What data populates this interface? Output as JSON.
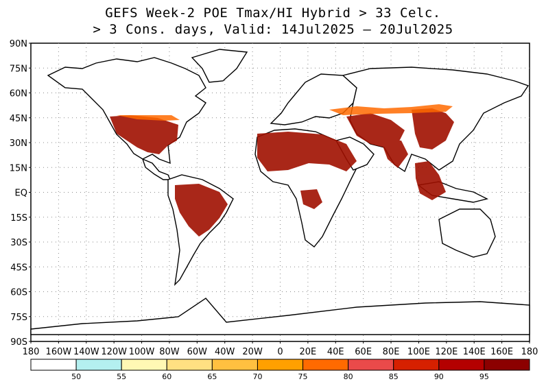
{
  "title": {
    "line1": "GEFS Week-2 POE Tmax/HI Hybrid > 33 Celc.",
    "line2": "> 3 Cons. days, Valid: 14Jul2025 – 20Jul2025"
  },
  "axes": {
    "lat_labels": [
      "90N",
      "75N",
      "60N",
      "45N",
      "30N",
      "15N",
      "EQ",
      "15S",
      "30S",
      "45S",
      "60S",
      "75S",
      "90S"
    ],
    "lon_labels": [
      "180",
      "160W",
      "140W",
      "120W",
      "100W",
      "80W",
      "60W",
      "40W",
      "20W",
      "0",
      "20E",
      "40E",
      "60E",
      "80E",
      "100E",
      "120E",
      "140E",
      "160E",
      "180"
    ]
  },
  "legend": {
    "labels": [
      "50",
      "55",
      "60",
      "65",
      "70",
      "75",
      "80",
      "85",
      "90",
      "95"
    ],
    "colors": [
      "#ffffff",
      "#b4f0f0",
      "#fff8b4",
      "#ffe082",
      "#ffc040",
      "#ffa000",
      "#ff6a00",
      "#ea4a4a",
      "#d62000",
      "#b40000",
      "#8c0000"
    ]
  },
  "map_regions": {
    "land_stroke": "#000000",
    "grid_color": "#888888",
    "probability_fill": "#a01000"
  }
}
